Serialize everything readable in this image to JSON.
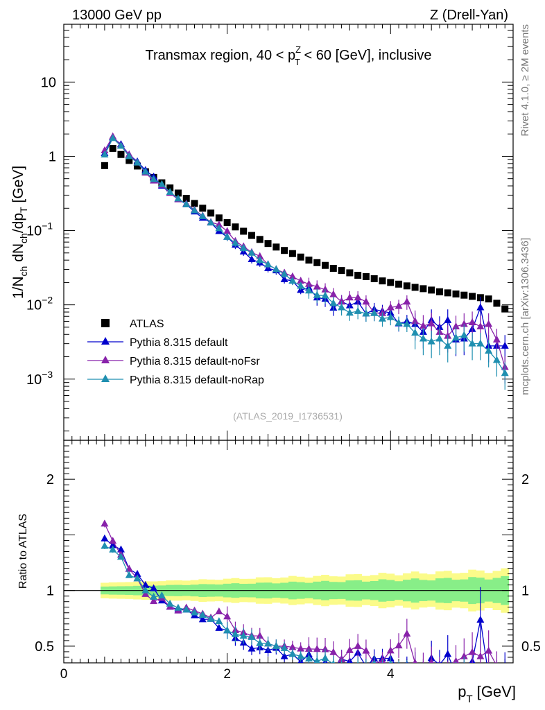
{
  "header": {
    "left": "13000 GeV pp",
    "right": "Z (Drell-Yan)"
  },
  "side": {
    "rivet": "Rivet 4.1.0, ≥ 2M events",
    "mcplots": "mcplots.cern.ch [arXiv:1306.3436]"
  },
  "chart_data": [
    {
      "type": "scatter",
      "title": "Transmax region, 40 < p_T^Z < 60 [GeV], inclusive",
      "title_parts": {
        "a": "Transmax region, 40 < p",
        "sub": "T",
        "sup": "Z",
        "b": " < 60 [GeV], inclusive"
      },
      "ylabel": "1/N_ch dN_ch/dp_T [GeV]",
      "ylabel_parts": {
        "a": "1/N",
        "s1": "ch",
        "b": " dN",
        "s2": "ch",
        "c": "/dp",
        "s3": "T",
        "d": " [GeV]"
      },
      "yscale": "log",
      "xlim": [
        0,
        5.5
      ],
      "ylim": [
        0.00015,
        60
      ],
      "y_ticks": [
        {
          "value": 10,
          "label": "10"
        },
        {
          "value": 1,
          "label": "1"
        },
        {
          "value": 0.1,
          "label": "10",
          "exp": "−1"
        },
        {
          "value": 0.01,
          "label": "10",
          "exp": "−2"
        },
        {
          "value": 0.001,
          "label": "10",
          "exp": "−3"
        }
      ],
      "watermark": "(ATLAS_2019_I1736531)",
      "legend_position": "lower-left",
      "x": [
        0.5,
        0.6,
        0.7,
        0.8,
        0.9,
        1.0,
        1.1,
        1.2,
        1.3,
        1.4,
        1.5,
        1.6,
        1.7,
        1.8,
        1.9,
        2.0,
        2.1,
        2.2,
        2.3,
        2.4,
        2.5,
        2.6,
        2.7,
        2.8,
        2.9,
        3.0,
        3.1,
        3.2,
        3.3,
        3.4,
        3.5,
        3.6,
        3.7,
        3.8,
        3.9,
        4.0,
        4.1,
        4.2,
        4.3,
        4.4,
        4.5,
        4.6,
        4.7,
        4.8,
        4.9,
        5.0,
        5.1,
        5.2,
        5.3,
        5.4
      ],
      "series": [
        {
          "name": "ATLAS",
          "color": "#000000",
          "marker": "square",
          "values": [
            0.75,
            1.28,
            1.06,
            0.88,
            0.74,
            0.62,
            0.52,
            0.44,
            0.375,
            0.32,
            0.272,
            0.232,
            0.2,
            0.172,
            0.148,
            0.128,
            0.112,
            0.098,
            0.086,
            0.076,
            0.067,
            0.06,
            0.054,
            0.049,
            0.044,
            0.04,
            0.037,
            0.034,
            0.031,
            0.029,
            0.027,
            0.025,
            0.024,
            0.0225,
            0.021,
            0.02,
            0.019,
            0.018,
            0.0172,
            0.0165,
            0.0158,
            0.015,
            0.0145,
            0.014,
            0.0135,
            0.013,
            0.0125,
            0.012,
            0.0105,
            0.0088
          ]
        },
        {
          "name": "Pythia 8.315 default",
          "color": "#0000cc",
          "marker": "triangle",
          "values": [
            1.1,
            1.8,
            1.45,
            1.05,
            0.85,
            0.65,
            0.53,
            0.4,
            0.32,
            0.265,
            0.225,
            0.18,
            0.148,
            0.128,
            0.098,
            0.082,
            0.064,
            0.052,
            0.041,
            0.037,
            0.031,
            0.029,
            0.022,
            0.021,
            0.0158,
            0.017,
            0.0125,
            0.012,
            0.0091,
            0.0111,
            0.0098,
            0.011,
            0.0076,
            0.0087,
            0.0082,
            0.0078,
            0.0056,
            0.006,
            0.0055,
            0.0043,
            0.0062,
            0.005,
            0.0062,
            0.0034,
            0.0035,
            0.0047,
            0.0092,
            0.0028,
            0.0028,
            0.0028
          ]
        },
        {
          "name": "Pythia 8.315 default-noFsr",
          "color": "#8822aa",
          "marker": "triangle",
          "values": [
            1.2,
            1.85,
            1.4,
            1.05,
            0.82,
            0.6,
            0.47,
            0.41,
            0.32,
            0.262,
            0.23,
            0.19,
            0.158,
            0.13,
            0.12,
            0.098,
            0.072,
            0.061,
            0.051,
            0.045,
            0.035,
            0.03,
            0.027,
            0.024,
            0.021,
            0.019,
            0.0175,
            0.016,
            0.0138,
            0.011,
            0.0125,
            0.0125,
            0.011,
            0.0078,
            0.0077,
            0.0092,
            0.0096,
            0.011,
            0.006,
            0.0052,
            0.0056,
            0.0043,
            0.0038,
            0.0051,
            0.0055,
            0.0058,
            0.0051,
            0.0055,
            0.0034,
            0.00145
          ]
        },
        {
          "name": "Pythia 8.315 default-noRap",
          "color": "#1f8fb0",
          "marker": "triangle",
          "values": [
            1.05,
            1.75,
            1.38,
            1.0,
            0.82,
            0.62,
            0.49,
            0.42,
            0.33,
            0.27,
            0.225,
            0.186,
            0.156,
            0.128,
            0.107,
            0.082,
            0.068,
            0.058,
            0.05,
            0.04,
            0.035,
            0.03,
            0.026,
            0.021,
            0.018,
            0.0155,
            0.0135,
            0.0133,
            0.0105,
            0.0092,
            0.0078,
            0.0082,
            0.0076,
            0.0077,
            0.0065,
            0.0068,
            0.0057,
            0.0055,
            0.0042,
            0.0035,
            0.0032,
            0.0035,
            0.0028,
            0.0036,
            0.0039,
            0.003,
            0.003,
            0.0024,
            0.0018,
            0.0012
          ]
        }
      ]
    },
    {
      "type": "line",
      "ylabel": "Ratio to ATLAS",
      "xlabel": "p_T [GeV]",
      "xlabel_parts": {
        "a": "p",
        "sub": "T",
        "b": " [GeV]"
      },
      "xlim": [
        0,
        5.5
      ],
      "ylim": [
        0.35,
        2.35
      ],
      "x_ticks": [
        {
          "value": 0,
          "label": "0"
        },
        {
          "value": 2,
          "label": "2"
        },
        {
          "value": 4,
          "label": "4"
        }
      ],
      "y_ticks": [
        {
          "value": 0.5,
          "label": "0.5"
        },
        {
          "value": 1,
          "label": "1"
        },
        {
          "value": 2,
          "label": "2"
        }
      ],
      "band_inner_halfwidth_start": 0.035,
      "band_inner_halfwidth_end": 0.13,
      "band_outer_halfwidth_start": 0.07,
      "band_outer_halfwidth_end": 0.2,
      "band_colors": {
        "inner": "#88ee88",
        "outer": "#fbfb8a"
      }
    }
  ]
}
